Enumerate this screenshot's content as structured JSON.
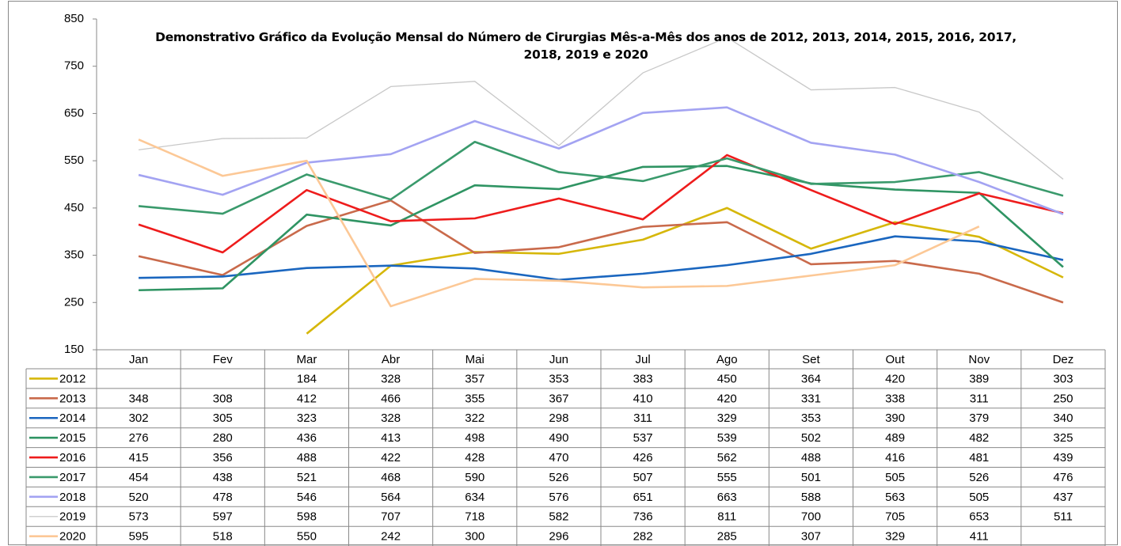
{
  "chart_data": {
    "type": "line",
    "title": "Demonstrativo Gráfico da Evolução Mensal do Número de Cirurgias Mês-a-Mês dos anos de  2012, 2013, 2014, 2015, 2016, 2017, 2018, 2019 e 2020",
    "categories": [
      "Jan",
      "Fev",
      "Mar",
      "Abr",
      "Mai",
      "Jun",
      "Jul",
      "Ago",
      "Set",
      "Out",
      "Nov",
      "Dez"
    ],
    "ylim": [
      150,
      850
    ],
    "yticks": [
      150,
      250,
      350,
      450,
      550,
      650,
      750,
      850
    ],
    "series": [
      {
        "name": "2012",
        "color": "#d6b70a",
        "values": [
          null,
          null,
          184,
          328,
          357,
          353,
          383,
          450,
          364,
          420,
          389,
          303
        ]
      },
      {
        "name": "2013",
        "color": "#c96a4b",
        "values": [
          348,
          308,
          412,
          466,
          355,
          367,
          410,
          420,
          331,
          338,
          311,
          250
        ]
      },
      {
        "name": "2014",
        "color": "#1a66bf",
        "values": [
          302,
          305,
          323,
          328,
          322,
          298,
          311,
          329,
          353,
          390,
          379,
          340
        ]
      },
      {
        "name": "2015",
        "color": "#2f9463",
        "values": [
          276,
          280,
          436,
          413,
          498,
          490,
          537,
          539,
          502,
          489,
          482,
          325
        ]
      },
      {
        "name": "2016",
        "color": "#ee1c1c",
        "values": [
          415,
          356,
          488,
          422,
          428,
          470,
          426,
          562,
          488,
          416,
          481,
          439
        ]
      },
      {
        "name": "2017",
        "color": "#3a9a6c",
        "values": [
          454,
          438,
          521,
          468,
          590,
          526,
          507,
          555,
          501,
          505,
          526,
          476
        ]
      },
      {
        "name": "2018",
        "color": "#a3a3f2",
        "values": [
          520,
          478,
          546,
          564,
          634,
          576,
          651,
          663,
          588,
          563,
          505,
          437
        ]
      },
      {
        "name": "2019",
        "color": "#c8c8c8",
        "values": [
          573,
          597,
          598,
          707,
          718,
          582,
          736,
          811,
          700,
          705,
          653,
          511
        ]
      },
      {
        "name": "2020",
        "color": "#fcc896",
        "values": [
          595,
          518,
          550,
          242,
          300,
          296,
          282,
          285,
          307,
          329,
          411,
          null
        ]
      }
    ]
  }
}
